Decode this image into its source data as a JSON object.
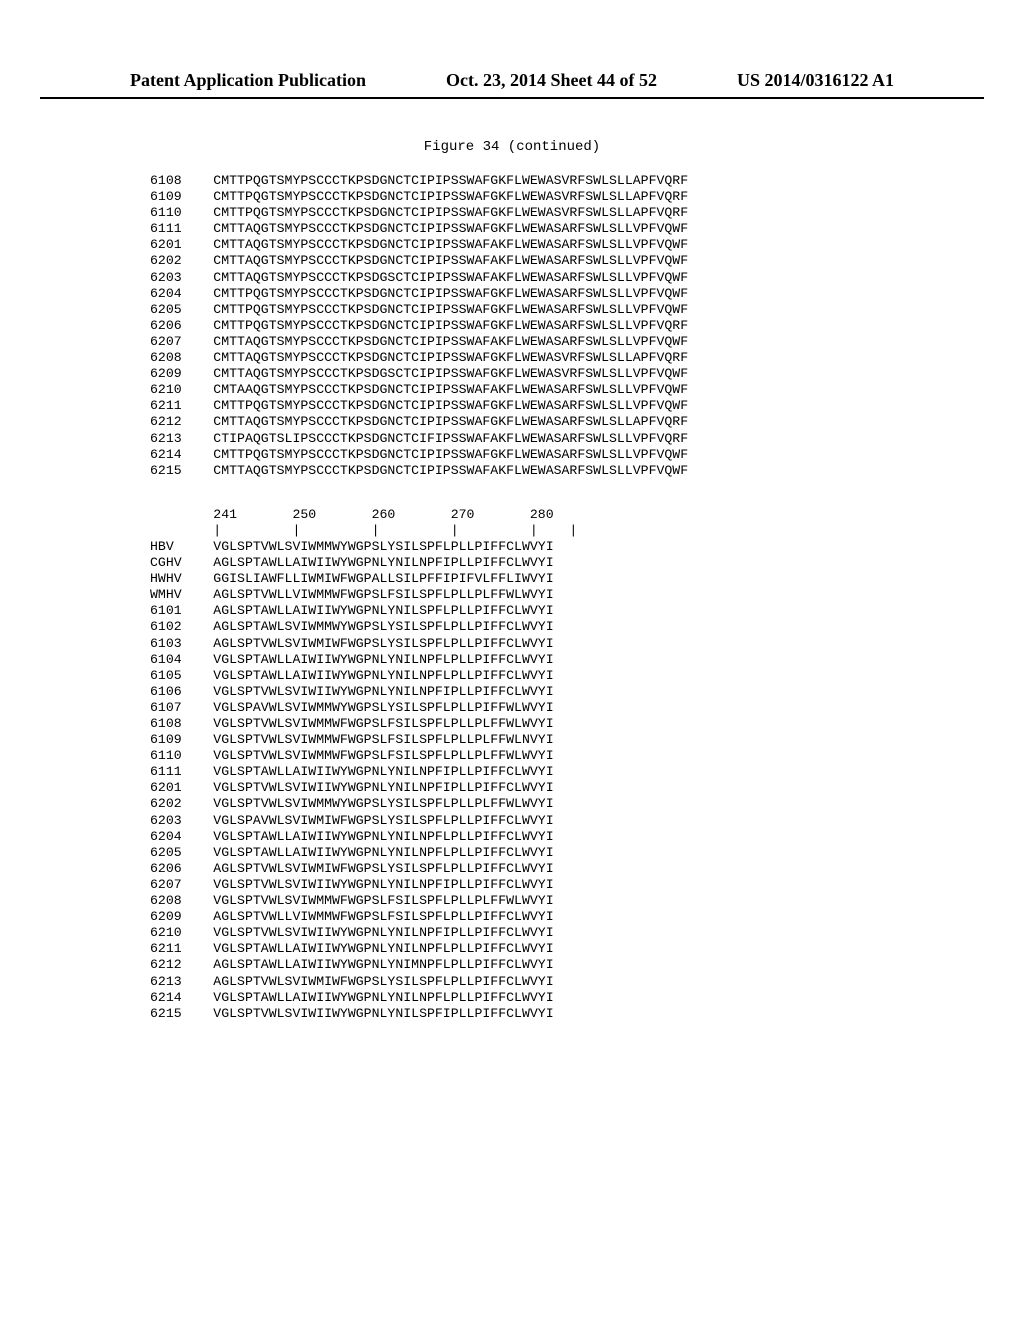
{
  "header": {
    "left": "Patent Application Publication",
    "center": "Oct. 23, 2014  Sheet 44 of 52",
    "right": "US 2014/0316122 A1"
  },
  "figure_title": "Figure 34 (continued)",
  "block1": {
    "label_col_width": 8,
    "rows": [
      {
        "id": "6108",
        "seq": "CMTTPQGTSMYPSCCCTKPSDGNCTCIPIPSSWAFGKFLWEWASVRFSWLSLLAPFVQRF"
      },
      {
        "id": "6109",
        "seq": "CMTTPQGTSMYPSCCCTKPSDGNCTCIPIPSSWAFGKFLWEWASVRFSWLSLLAPFVQRF"
      },
      {
        "id": "6110",
        "seq": "CMTTPQGTSMYPSCCCTKPSDGNCTCIPIPSSWAFGKFLWEWASVRFSWLSLLAPFVQRF"
      },
      {
        "id": "6111",
        "seq": "CMTTAQGTSMYPSCCCTKPSDGNCTCIPIPSSWAFGKFLWEWASARFSWLSLLVPFVQWF"
      },
      {
        "id": "6201",
        "seq": "CMTTAQGTSMYPSCCCTKPSDGNCTCIPIPSSWAFAKFLWEWASARFSWLSLLVPFVQWF"
      },
      {
        "id": "6202",
        "seq": "CMTTAQGTSMYPSCCCTKPSDGNCTCIPIPSSWAFAKFLWEWASARFSWLSLLVPFVQWF"
      },
      {
        "id": "6203",
        "seq": "CMTTAQGTSMYPSCCCTKPSDGSCTCIPIPSSWAFAKFLWEWASARFSWLSLLVPFVQWF"
      },
      {
        "id": "6204",
        "seq": "CMTTPQGTSMYPSCCCTKPSDGNCTCIPIPSSWAFGKFLWEWASARFSWLSLLVPFVQWF"
      },
      {
        "id": "6205",
        "seq": "CMTTPQGTSMYPSCCCTKPSDGNCTCIPIPSSWAFGKFLWEWASARFSWLSLLVPFVQWF"
      },
      {
        "id": "6206",
        "seq": "CMTTPQGTSMYPSCCCTKPSDGNCTCIPIPSSWAFGKFLWEWASARFSWLSLLVPFVQRF"
      },
      {
        "id": "6207",
        "seq": "CMTTAQGTSMYPSCCCTKPSDGNCTCIPIPSSWAFAKFLWEWASARFSWLSLLVPFVQWF"
      },
      {
        "id": "6208",
        "seq": "CMTTAQGTSMYPSCCCTKPSDGNCTCIPIPSSWAFGKFLWEWASVRFSWLSLLAPFVQRF"
      },
      {
        "id": "6209",
        "seq": "CMTTAQGTSMYPSCCCTKPSDGSCTCIPIPSSWAFGKFLWEWASVRFSWLSLLVPFVQWF"
      },
      {
        "id": "6210",
        "seq": "CMTAAQGTSMYPSCCCTKPSDGNCTCIPIPSSWAFAKFLWEWASARFSWLSLLVPFVQWF"
      },
      {
        "id": "6211",
        "seq": "CMTTPQGTSMYPSCCCTKPSDGNCTCIPIPSSWAFGKFLWEWASARFSWLSLLVPFVQWF"
      },
      {
        "id": "6212",
        "seq": "CMTTAQGTSMYPSCCCTKPSDGNCTCIPIPSSWAFGKFLWEWASARFSWLSLLAPFVQRF"
      },
      {
        "id": "6213",
        "seq": "CTIPAQGTSLIPSCCCTKPSDGNCTCIFIPSSWAFAKFLWEWASARFSWLSLLVPFVQRF"
      },
      {
        "id": "6214",
        "seq": "CMTTPQGTSMYPSCCCTKPSDGNCTCIPIPSSWAFGKFLWEWASARFSWLSLLVPFVQWF"
      },
      {
        "id": "6215",
        "seq": "CMTTAQGTSMYPSCCCTKPSDGNCTCIPIPSSWAFAKFLWEWASARFSWLSLLVPFVQWF"
      }
    ]
  },
  "block2": {
    "ruler": {
      "ticks": "241       250       260       270       280",
      "marks": "|         |         |         |         |    |"
    },
    "label_col_width": 8,
    "rows": [
      {
        "id": "HBV",
        "seq": "VGLSPTVWLSVIWMMWYWGPSLYSILSPFLPLLPIFFCLWVYI"
      },
      {
        "id": "CGHV",
        "seq": "AGLSPTAWLLAIWIIWYWGPNLYNILNPFIPLLPIFFCLWVYI"
      },
      {
        "id": "HWHV",
        "seq": "GGISLIAWFLLIWMIWFWGPALLSILPFFIPIFVLFFLIWVYI"
      },
      {
        "id": "WMHV",
        "seq": "AGLSPTVWLLVIWMMWFWGPSLFSILSPFLPLLPLFFWLWVYI"
      },
      {
        "id": "6101",
        "seq": "AGLSPTAWLLAIWIIWYWGPNLYNILSPFLPLLPIFFCLWVYI"
      },
      {
        "id": "6102",
        "seq": "AGLSPTAWLSVIWMMWYWGPSLYSILSPFLPLLPIFFCLWVYI"
      },
      {
        "id": "6103",
        "seq": "AGLSPTVWLSVIWMIWFWGPSLYSILSPFLPLLPIFFCLWVYI"
      },
      {
        "id": "6104",
        "seq": "VGLSPTAWLLAIWIIWYWGPNLYNILNPFLPLLPIFFCLWVYI"
      },
      {
        "id": "6105",
        "seq": "VGLSPTAWLLAIWIIWYWGPNLYNILNPFLPLLPIFFCLWVYI"
      },
      {
        "id": "6106",
        "seq": "VGLSPTVWLSVIWIIWYWGPNLYNILNPFIPLLPIFFCLWVYI"
      },
      {
        "id": "6107",
        "seq": "VGLSPAVWLSVIWMMWYWGPSLYSILSPFLPLLPIFFWLWVYI"
      },
      {
        "id": "6108",
        "seq": "VGLSPTVWLSVIWMMWFWGPSLFSILSPFLPLLPLFFWLWVYI"
      },
      {
        "id": "6109",
        "seq": "VGLSPTVWLSVIWMMWFWGPSLFSILSPFLPLLPLFFWLNVYI"
      },
      {
        "id": "6110",
        "seq": "VGLSPTVWLSVIWMMWFWGPSLFSILSPFLPLLPLFFWLWVYI"
      },
      {
        "id": "6111",
        "seq": "VGLSPTAWLLAIWIIWYWGPNLYNILNPFIPLLPIFFCLWVYI"
      },
      {
        "id": "6201",
        "seq": "VGLSPTVWLSVIWIIWYWGPNLYNILNPFIPLLPIFFCLWVYI"
      },
      {
        "id": "6202",
        "seq": "VGLSPTVWLSVIWMMWYWGPSLYSILSPFLPLLPLFFWLWVYI"
      },
      {
        "id": "6203",
        "seq": "VGLSPAVWLSVIWMIWFWGPSLYSILSPFLPLLPIFFCLWVYI"
      },
      {
        "id": "6204",
        "seq": "VGLSPTAWLLAIWIIWYWGPNLYNILNPFLPLLPIFFCLWVYI"
      },
      {
        "id": "6205",
        "seq": "VGLSPTAWLLAIWIIWYWGPNLYNILNPFLPLLPIFFCLWVYI"
      },
      {
        "id": "6206",
        "seq": "AGLSPTVWLSVIWMIWFWGPSLYSILSPFLPLLPIFFCLWVYI"
      },
      {
        "id": "6207",
        "seq": "VGLSPTVWLSVIWIIWYWGPNLYNILNPFIPLLPIFFCLWVYI"
      },
      {
        "id": "6208",
        "seq": "VGLSPTVWLSVIWMMWFWGPSLFSILSPFLPLLPLFFWLWVYI"
      },
      {
        "id": "6209",
        "seq": "AGLSPTVWLLVIWMMWFWGPSLFSILSPFLPLLPIFFCLWVYI"
      },
      {
        "id": "6210",
        "seq": "VGLSPTVWLSVIWIIWYWGPNLYNILNPFIPLLPIFFCLWVYI"
      },
      {
        "id": "6211",
        "seq": "VGLSPTAWLLAIWIIWYWGPNLYNILNPFLPLLPIFFCLWVYI"
      },
      {
        "id": "6212",
        "seq": "AGLSPTAWLLAIWIIWYWGPNLYNIMNPFLPLLPIFFCLWVYI"
      },
      {
        "id": "6213",
        "seq": "AGLSPTVWLSVIWMIWFWGPSLYSILSPFLPLLPIFFCLWVYI"
      },
      {
        "id": "6214",
        "seq": "VGLSPTAWLLAIWIIWYWGPNLYNILNPFLPLLPIFFCLWVYI"
      },
      {
        "id": "6215",
        "seq": "VGLSPTVWLSVIWIIWYWGPNLYNILSPFIPLLPIFFCLWVYI"
      }
    ]
  }
}
